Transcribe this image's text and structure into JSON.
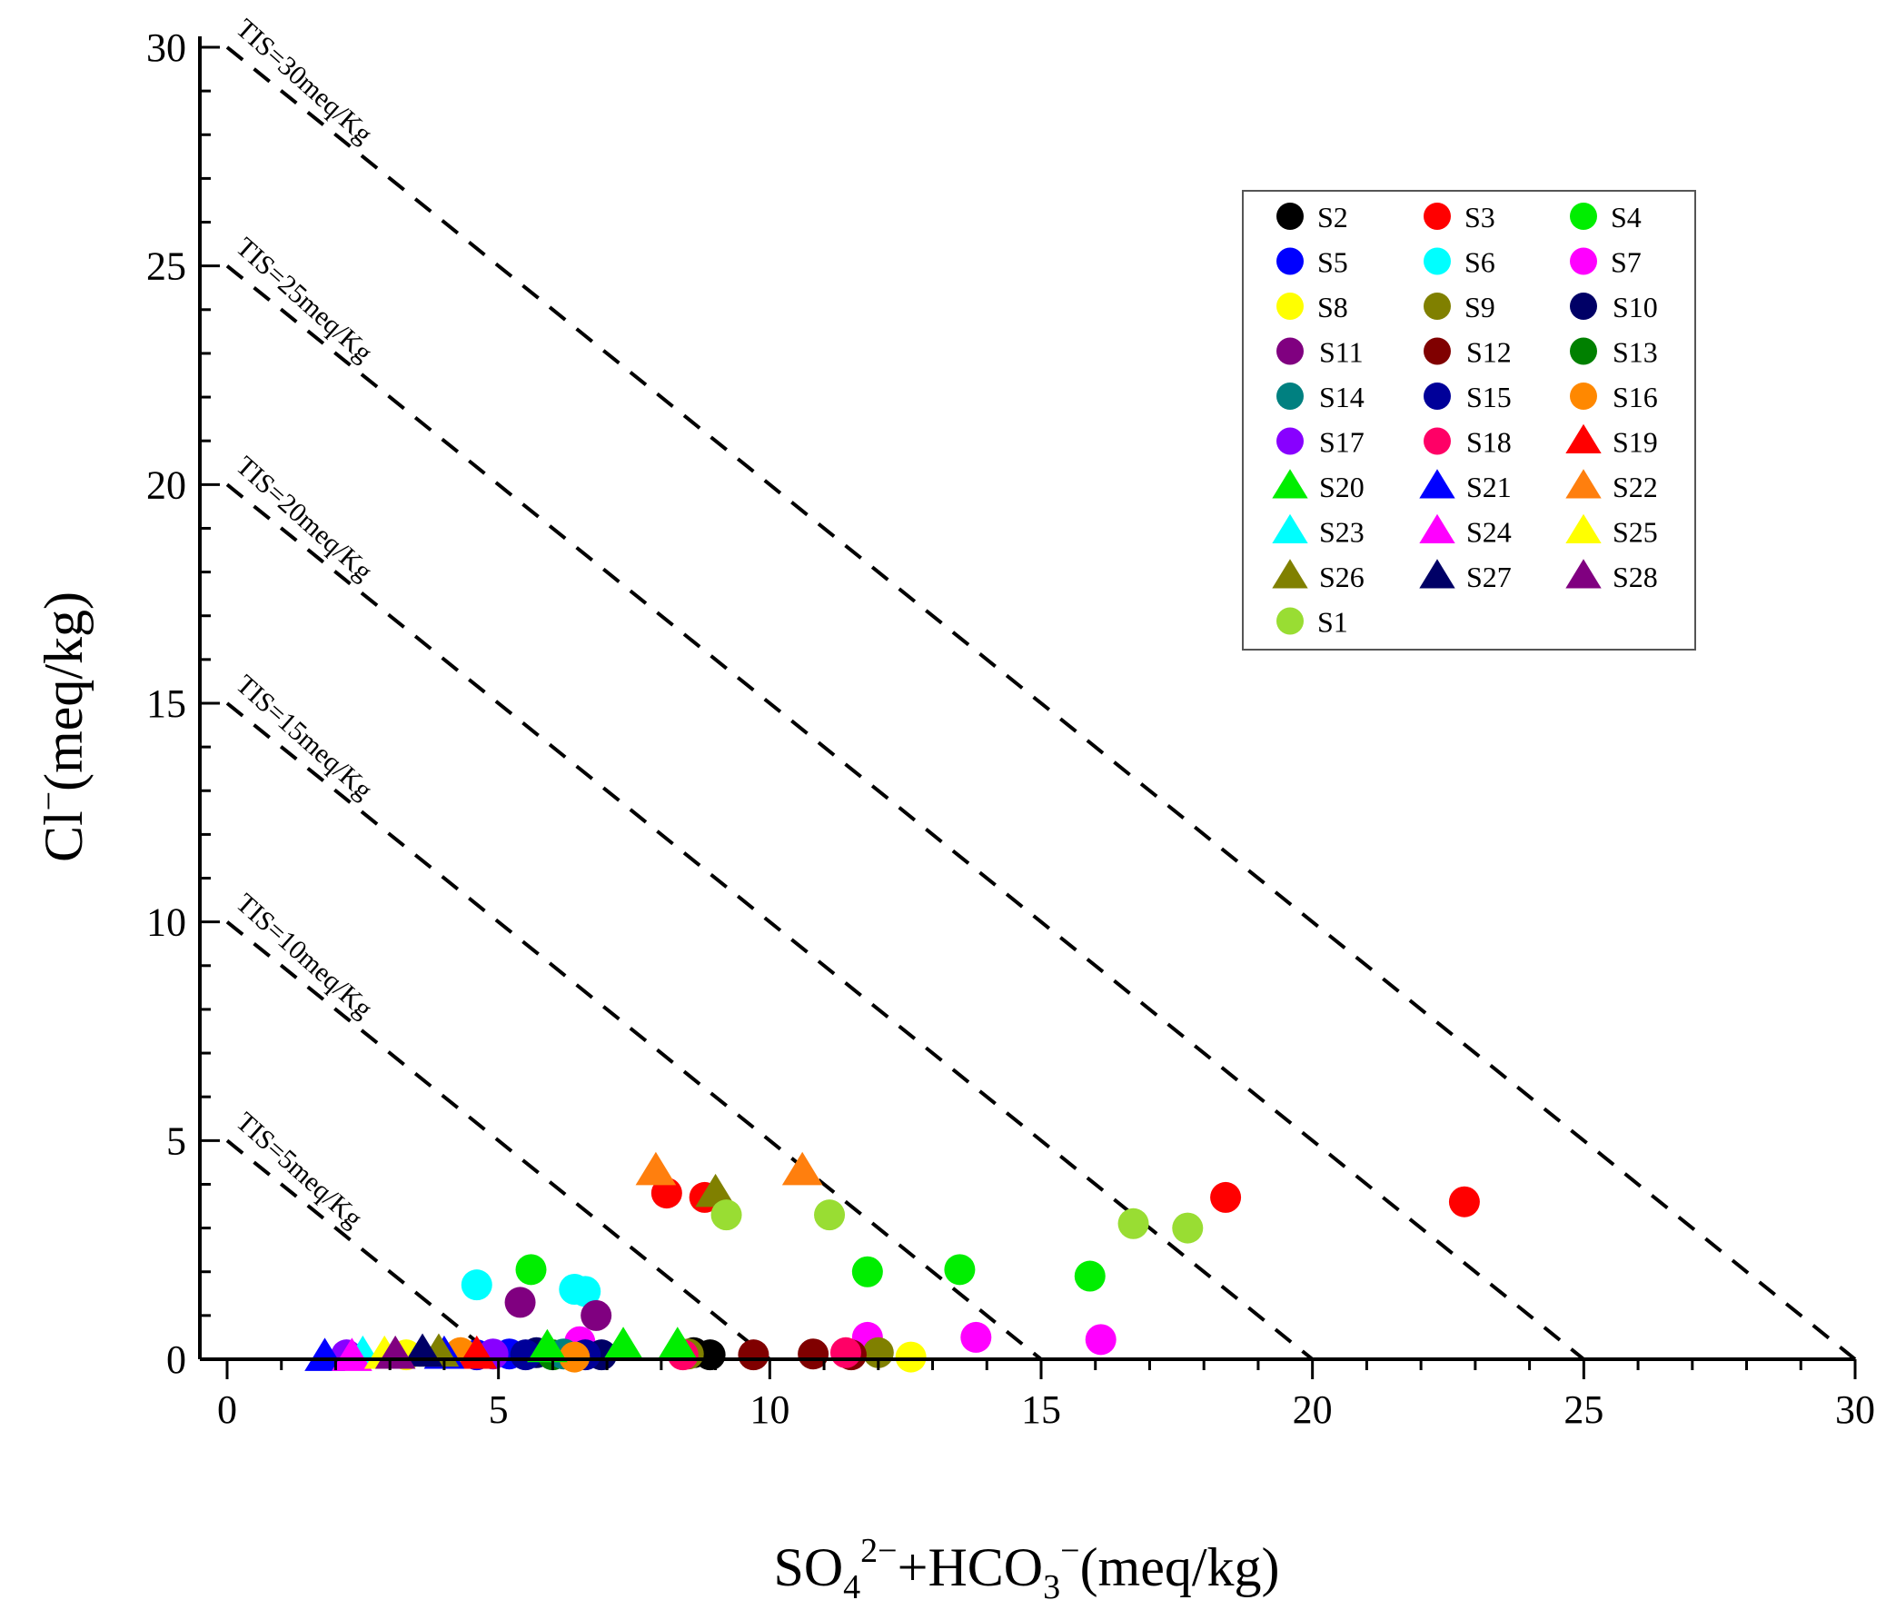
{
  "chart_data": {
    "type": "scatter",
    "xlabel": {
      "base": "SO",
      "sub1": "4",
      "sup1": "2−",
      "mid": "+HCO",
      "sub2": "3",
      "sup2": "−",
      "unit": "(meq/kg)"
    },
    "ylabel": {
      "base": "Cl",
      "sup": "−",
      "unit": "(meq/kg)"
    },
    "xlim": [
      0,
      30
    ],
    "ylim": [
      0,
      30
    ],
    "xticks": [
      "0",
      "5",
      "10",
      "15",
      "20",
      "25",
      "30"
    ],
    "yticks": [
      "0",
      "5",
      "10",
      "15",
      "20",
      "25",
      "30"
    ],
    "legend_position": "top-right",
    "tis_lines": [
      {
        "value": 5,
        "label": "TIS=5meq/Kg"
      },
      {
        "value": 10,
        "label": "TIS=10meq/Kg"
      },
      {
        "value": 15,
        "label": "TIS=15meq/Kg"
      },
      {
        "value": 20,
        "label": "TIS=20meq/Kg"
      },
      {
        "value": 25,
        "label": "TIS=25meq/Kg"
      },
      {
        "value": 30,
        "label": "TIS=30meq/Kg"
      }
    ],
    "series": [
      {
        "name": "S2",
        "marker": "circle",
        "color": "#000000",
        "points": [
          [
            8.9,
            0.1
          ],
          [
            8.6,
            0.15
          ]
        ]
      },
      {
        "name": "S3",
        "marker": "circle",
        "color": "#ff0000",
        "points": [
          [
            8.1,
            3.8
          ],
          [
            8.8,
            3.7
          ],
          [
            18.4,
            3.7
          ],
          [
            22.8,
            3.6
          ]
        ]
      },
      {
        "name": "S4",
        "marker": "circle",
        "color": "#00ee00",
        "points": [
          [
            5.6,
            2.05
          ],
          [
            11.8,
            2.0
          ],
          [
            13.5,
            2.05
          ],
          [
            15.9,
            1.9
          ]
        ]
      },
      {
        "name": "S5",
        "marker": "circle",
        "color": "#0000ff",
        "points": [
          [
            5.2,
            0.12
          ],
          [
            4.6,
            0.1
          ]
        ]
      },
      {
        "name": "S6",
        "marker": "circle",
        "color": "#00ffff",
        "points": [
          [
            4.6,
            1.7
          ],
          [
            6.4,
            1.6
          ],
          [
            6.6,
            1.55
          ]
        ]
      },
      {
        "name": "S7",
        "marker": "circle",
        "color": "#ff00ff",
        "points": [
          [
            11.8,
            0.5
          ],
          [
            13.8,
            0.5
          ],
          [
            16.1,
            0.45
          ],
          [
            6.5,
            0.4
          ]
        ]
      },
      {
        "name": "S8",
        "marker": "circle",
        "color": "#ffff00",
        "points": [
          [
            12.6,
            0.05
          ],
          [
            3.3,
            0.1
          ]
        ]
      },
      {
        "name": "S9",
        "marker": "circle",
        "color": "#808000",
        "points": [
          [
            12.0,
            0.15
          ],
          [
            8.5,
            0.12
          ]
        ]
      },
      {
        "name": "S10",
        "marker": "circle",
        "color": "#000066",
        "points": [
          [
            6.9,
            0.1
          ],
          [
            5.7,
            0.15
          ]
        ]
      },
      {
        "name": "S11",
        "marker": "circle",
        "color": "#800080",
        "points": [
          [
            5.4,
            1.3
          ],
          [
            6.8,
            1.0
          ]
        ]
      },
      {
        "name": "S12",
        "marker": "circle",
        "color": "#800000",
        "points": [
          [
            9.7,
            0.1
          ],
          [
            10.8,
            0.12
          ],
          [
            11.5,
            0.1
          ]
        ]
      },
      {
        "name": "S13",
        "marker": "circle",
        "color": "#008000",
        "points": [
          [
            6.0,
            0.1
          ]
        ]
      },
      {
        "name": "S14",
        "marker": "circle",
        "color": "#008080",
        "points": [
          [
            6.2,
            0.12
          ]
        ]
      },
      {
        "name": "S15",
        "marker": "circle",
        "color": "#000099",
        "points": [
          [
            5.5,
            0.1
          ],
          [
            6.6,
            0.1
          ]
        ]
      },
      {
        "name": "S16",
        "marker": "circle",
        "color": "#ff8800",
        "points": [
          [
            6.4,
            0.05
          ],
          [
            4.3,
            0.15
          ]
        ]
      },
      {
        "name": "S17",
        "marker": "circle",
        "color": "#8800ff",
        "points": [
          [
            4.9,
            0.12
          ],
          [
            2.2,
            0.1
          ]
        ]
      },
      {
        "name": "S18",
        "marker": "circle",
        "color": "#ff0066",
        "points": [
          [
            11.4,
            0.15
          ],
          [
            8.4,
            0.1
          ]
        ]
      },
      {
        "name": "S19",
        "marker": "triangle",
        "color": "#ff0000",
        "points": [
          [
            4.6,
            0.1
          ]
        ]
      },
      {
        "name": "S20",
        "marker": "triangle",
        "color": "#00ee00",
        "points": [
          [
            5.9,
            0.25
          ],
          [
            7.3,
            0.3
          ],
          [
            8.3,
            0.3
          ]
        ]
      },
      {
        "name": "S21",
        "marker": "triangle",
        "color": "#0000ff",
        "points": [
          [
            1.8,
            0.05
          ],
          [
            4.0,
            0.1
          ]
        ]
      },
      {
        "name": "S22",
        "marker": "triangle",
        "color": "#ff7f0e",
        "points": [
          [
            7.9,
            4.3
          ],
          [
            10.6,
            4.3
          ]
        ]
      },
      {
        "name": "S23",
        "marker": "triangle",
        "color": "#00ffff",
        "points": [
          [
            2.5,
            0.1
          ]
        ]
      },
      {
        "name": "S24",
        "marker": "triangle",
        "color": "#ff00ff",
        "points": [
          [
            2.3,
            0.05
          ]
        ]
      },
      {
        "name": "S25",
        "marker": "triangle",
        "color": "#ffff00",
        "points": [
          [
            2.9,
            0.1
          ]
        ]
      },
      {
        "name": "S26",
        "marker": "triangle",
        "color": "#808000",
        "points": [
          [
            9.0,
            3.8
          ],
          [
            3.9,
            0.15
          ]
        ]
      },
      {
        "name": "S27",
        "marker": "triangle",
        "color": "#000066",
        "points": [
          [
            3.6,
            0.15
          ]
        ]
      },
      {
        "name": "S28",
        "marker": "triangle",
        "color": "#800080",
        "points": [
          [
            3.1,
            0.1
          ]
        ]
      },
      {
        "name": "S1",
        "marker": "circle",
        "color": "#99dd33",
        "points": [
          [
            9.2,
            3.3
          ],
          [
            11.1,
            3.3
          ],
          [
            16.7,
            3.1
          ],
          [
            17.7,
            3.0
          ]
        ]
      }
    ]
  }
}
